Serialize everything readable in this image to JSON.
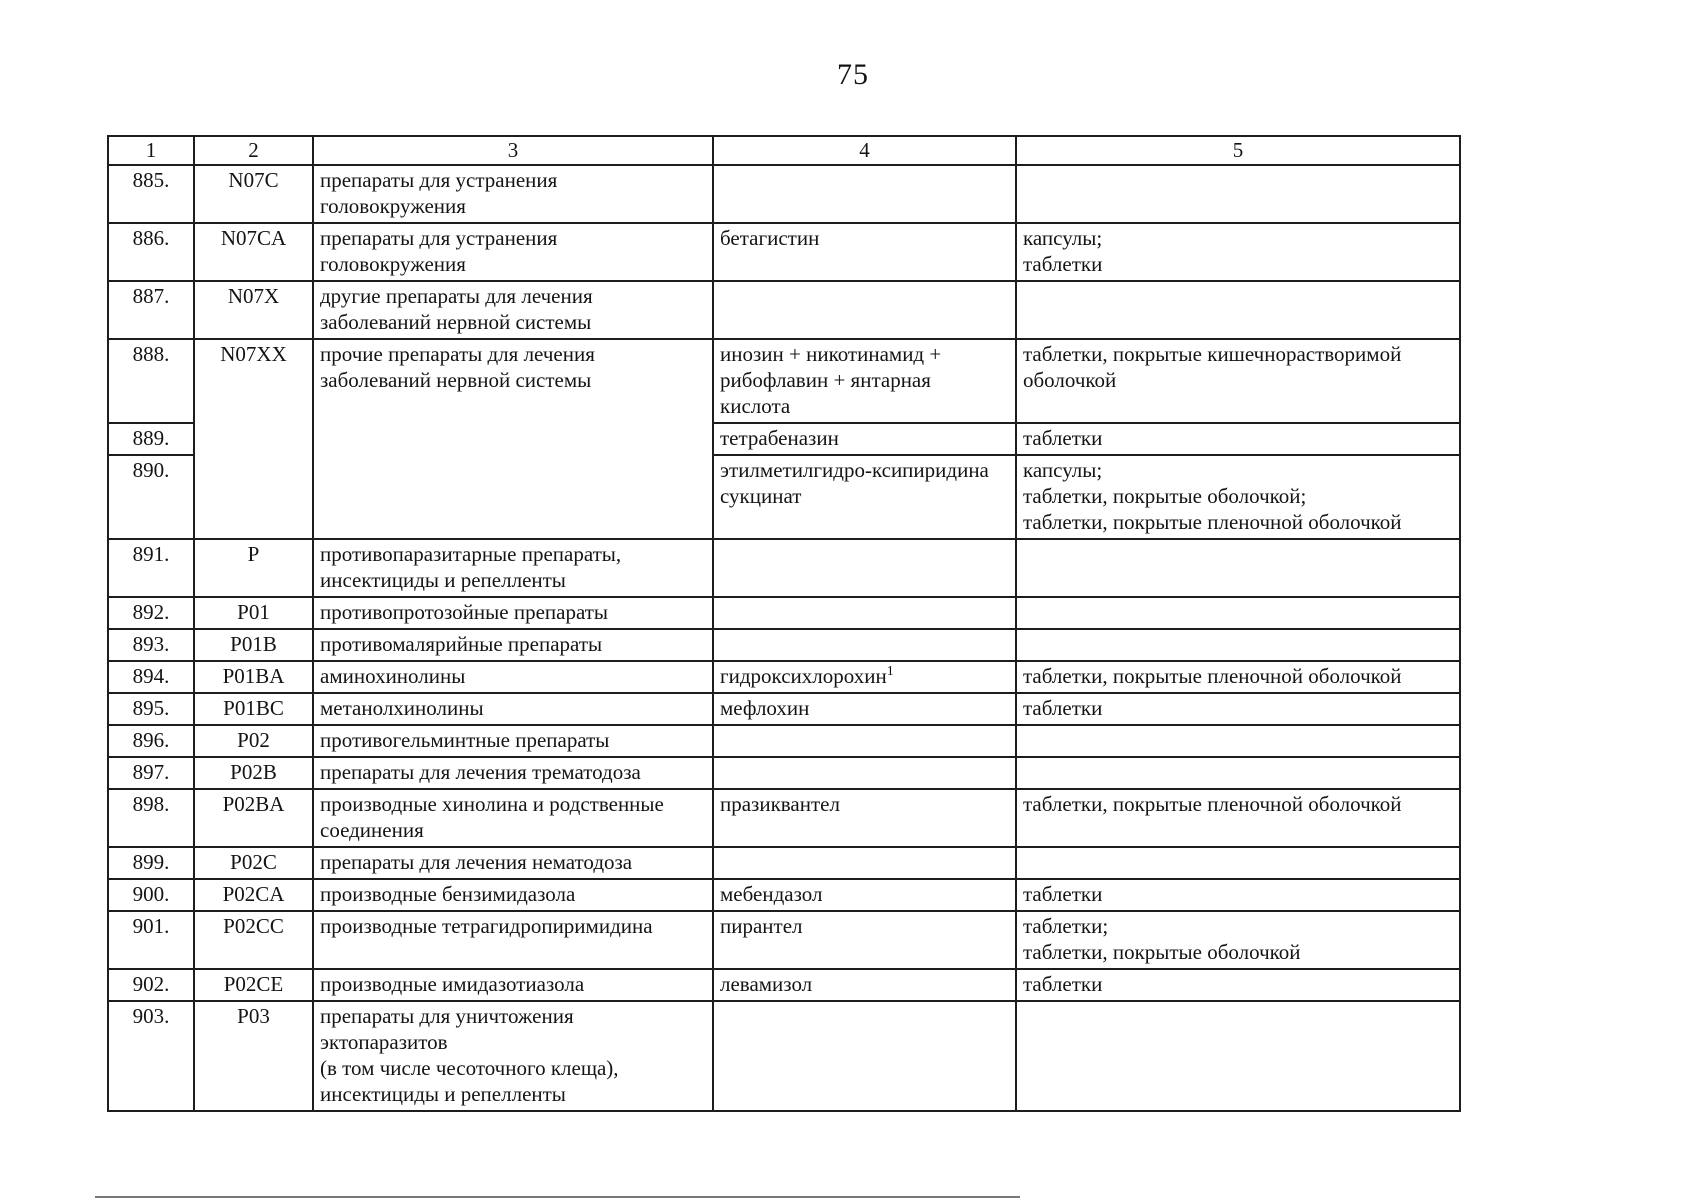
{
  "page": {
    "number": "75"
  },
  "table": {
    "headers": [
      "1",
      "2",
      "3",
      "4",
      "5"
    ],
    "rows": [
      {
        "num": "885.",
        "code": "N07C",
        "group": "препараты для устранения\nголовокружения",
        "drug": "",
        "forms": ""
      },
      {
        "num": "886.",
        "code": "N07CA",
        "group": "препараты для устранения\nголовокружения",
        "drug": "бетагистин",
        "forms": "капсулы;\nтаблетки"
      },
      {
        "num": "887.",
        "code": "N07X",
        "group": "другие препараты для лечения\nзаболеваний нервной системы",
        "drug": "",
        "forms": ""
      },
      {
        "num": "888.",
        "code": "N07XX",
        "group": "прочие препараты для лечения\nзаболеваний нервной системы",
        "drug": "инозин + никотинамид +\nрибофлавин + янтарная\nкислота",
        "forms": "таблетки, покрытые кишечнорастворимой\nоболочкой"
      },
      {
        "num": "889.",
        "drug": "тетрабеназин",
        "forms": "таблетки"
      },
      {
        "num": "890.",
        "drug": "этилметилгидро-ксипиридина\nсукцинат",
        "forms": "капсулы;\nтаблетки, покрытые оболочкой;\nтаблетки, покрытые пленочной оболочкой"
      },
      {
        "num": "891.",
        "code": "P",
        "group": "противопаразитарные препараты,\nинсектициды и репелленты",
        "drug": "",
        "forms": ""
      },
      {
        "num": "892.",
        "code": "P01",
        "group": "противопротозойные препараты",
        "drug": "",
        "forms": ""
      },
      {
        "num": "893.",
        "code": "P01B",
        "group": "противомалярийные препараты",
        "drug": "",
        "forms": ""
      },
      {
        "num": "894.",
        "code": "P01BA",
        "group": "аминохинолины",
        "drug": "гидроксихлорохин",
        "drug_sup": "1",
        "forms": "таблетки, покрытые пленочной оболочкой"
      },
      {
        "num": "895.",
        "code": "P01BC",
        "group": "метанолхинолины",
        "drug": "мефлохин",
        "forms": "таблетки"
      },
      {
        "num": "896.",
        "code": "P02",
        "group": "противогельминтные препараты",
        "drug": "",
        "forms": ""
      },
      {
        "num": "897.",
        "code": "P02B",
        "group": "препараты для лечения трематодоза",
        "drug": "",
        "forms": ""
      },
      {
        "num": "898.",
        "code": "P02BA",
        "group": "производные хинолина и родственные\nсоединения",
        "drug": "празиквантел",
        "forms": "таблетки, покрытые пленочной оболочкой"
      },
      {
        "num": "899.",
        "code": "P02C",
        "group": "препараты для лечения нематодоза",
        "drug": "",
        "forms": ""
      },
      {
        "num": "900.",
        "code": "P02CA",
        "group": "производные бензимидазола",
        "drug": "мебендазол",
        "forms": "таблетки"
      },
      {
        "num": "901.",
        "code": "P02CC",
        "group": "производные тетрагидропиримидина",
        "drug": "пирантел",
        "forms": "таблетки;\nтаблетки, покрытые оболочкой"
      },
      {
        "num": "902.",
        "code": "P02CE",
        "group": "производные имидазотиазола",
        "drug": "левамизол",
        "forms": "таблетки"
      },
      {
        "num": "903.",
        "code": "P03",
        "group": "препараты для уничтожения\nэктопаразитов\n(в том числе чесоточного клеща),\nинсектициды и репелленты",
        "drug": "",
        "forms": ""
      }
    ]
  }
}
